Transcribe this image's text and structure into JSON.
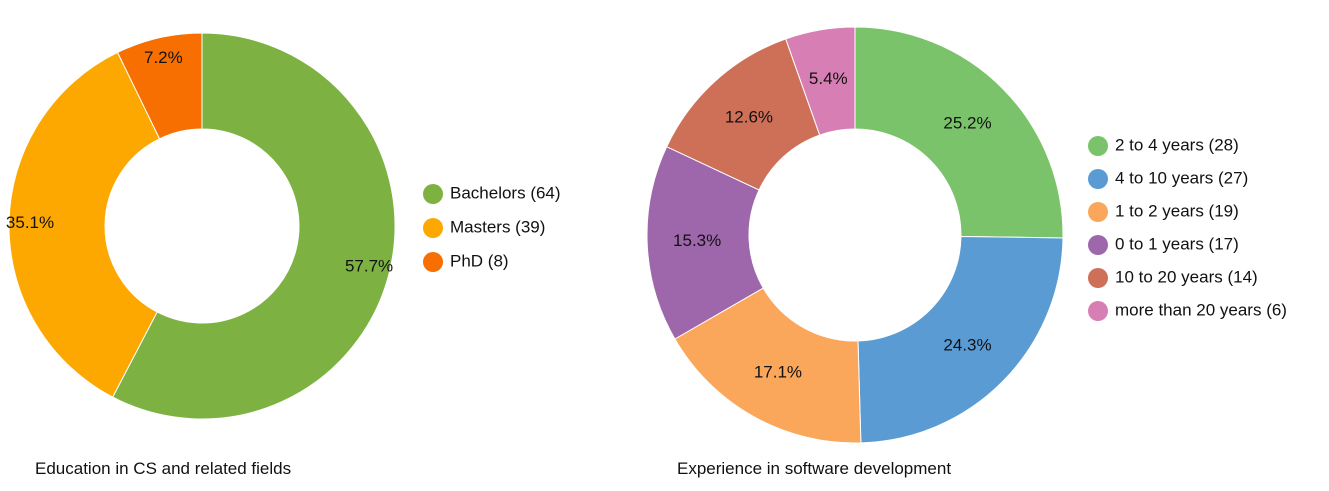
{
  "chart_data": [
    {
      "type": "pie",
      "variant": "donut",
      "caption": "Education in CS and related fields",
      "slices": [
        {
          "name": "Bachelors",
          "count": 64,
          "percent": 57.7,
          "label": "57.7%",
          "legend": "Bachelors (64)",
          "color": "#7db243"
        },
        {
          "name": "Masters",
          "count": 39,
          "percent": 35.1,
          "label": "35.1%",
          "legend": "Masters (39)",
          "color": "#fca800"
        },
        {
          "name": "PhD",
          "count": 8,
          "percent": 7.2,
          "label": "7.2%",
          "legend": "PhD (8)",
          "color": "#f66f00"
        }
      ],
      "legend_position": "right"
    },
    {
      "type": "pie",
      "variant": "donut",
      "caption": "Experience in software development",
      "slices": [
        {
          "name": "2 to 4 years",
          "count": 28,
          "percent": 25.2,
          "label": "25.2%",
          "legend": "2 to 4 years (28)",
          "color": "#7ac36a"
        },
        {
          "name": "4 to 10 years",
          "count": 27,
          "percent": 24.3,
          "label": "24.3%",
          "legend": "4 to 10 years (27)",
          "color": "#5a9bd4"
        },
        {
          "name": "1 to 2 years",
          "count": 19,
          "percent": 17.1,
          "label": "17.1%",
          "legend": "1 to 2 years (19)",
          "color": "#faa75b"
        },
        {
          "name": "0 to 1 years",
          "count": 17,
          "percent": 15.3,
          "label": "15.3%",
          "legend": "0 to 1 years (17)",
          "color": "#9e67ab"
        },
        {
          "name": "10 to 20 years",
          "count": 14,
          "percent": 12.6,
          "label": "12.6%",
          "legend": "10 to 20 years (14)",
          "color": "#ce7058"
        },
        {
          "name": "more than 20 years",
          "count": 6,
          "percent": 5.4,
          "label": "5.4%",
          "legend": "more than 20 years (6)",
          "color": "#d77fb4"
        }
      ],
      "legend_position": "right"
    }
  ]
}
